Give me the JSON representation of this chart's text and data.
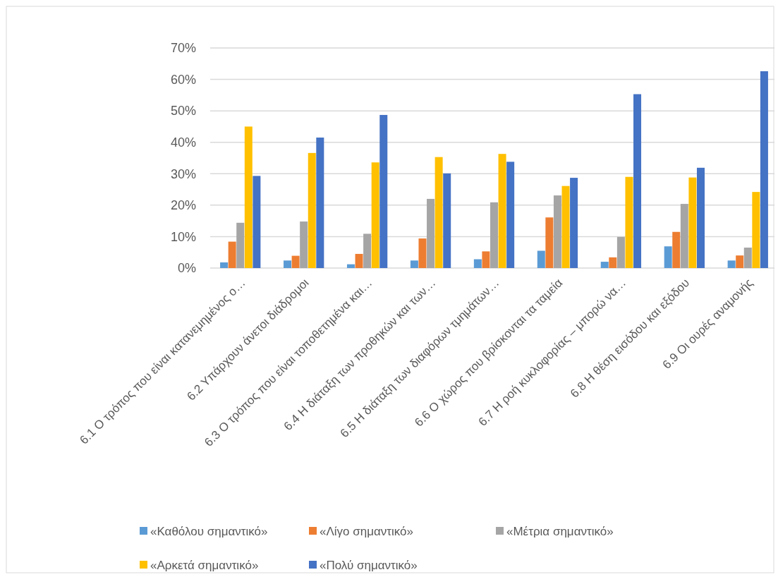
{
  "chart_data": {
    "type": "bar",
    "categories": [
      "6.1 Ο τρόπος που είναι κατανεμημένος ο…",
      "6.2 Υπάρχουν άνετοι διάδρομοι",
      "6.3 Ο τρόπος που είναι τοποθετημένα και…",
      "6.4 Η διάταξη των προθηκών και των…",
      "6.5 Η διάταξη των διαφόρων τμημάτων…",
      "6.6 Ο χώρος που βρίσκονται τα ταμεία",
      "6.7 Η ροή κυκλοφορίας – μπορώ να…",
      "6.8 Η θέση εισόδου και εξόδου",
      "6.9 Οι ουρές αναμονής"
    ],
    "series": [
      {
        "name": "«Καθόλου σημαντικό»",
        "color": "#5b9bd5",
        "values": [
          1.8,
          2.4,
          1.2,
          2.4,
          2.8,
          5.5,
          2.0,
          6.9,
          2.4
        ]
      },
      {
        "name": "«Λίγο σημαντικό»",
        "color": "#ed7d31",
        "values": [
          8.4,
          3.9,
          4.5,
          9.4,
          5.3,
          16.1,
          3.4,
          11.5,
          4.0
        ]
      },
      {
        "name": "«Μέτρια σημαντικό»",
        "color": "#a5a5a5",
        "values": [
          14.4,
          14.8,
          10.9,
          22,
          20.9,
          23.1,
          9.9,
          20.4,
          6.5
        ]
      },
      {
        "name": "«Αρκετά σημαντικό»",
        "color": "#ffc000",
        "values": [
          45,
          36.6,
          33.6,
          35.3,
          36.3,
          26.1,
          29,
          28.8,
          24.2
        ]
      },
      {
        "name": "«Πολύ σημαντικό»",
        "color": "#4472c4",
        "values": [
          29.3,
          41.5,
          48.7,
          30.1,
          33.8,
          28.7,
          55.3,
          31.9,
          62.6
        ]
      }
    ],
    "ylim": [
      0,
      70
    ],
    "yticks": [
      {
        "value": 0,
        "label": "0%"
      },
      {
        "value": 10,
        "label": "10%"
      },
      {
        "value": 20,
        "label": "20%"
      },
      {
        "value": 30,
        "label": "30%"
      },
      {
        "value": 40,
        "label": "40%"
      },
      {
        "value": 50,
        "label": "50%"
      },
      {
        "value": 60,
        "label": "60%"
      },
      {
        "value": 70,
        "label": "70%"
      }
    ],
    "grid": "y",
    "legend": "bottom"
  }
}
